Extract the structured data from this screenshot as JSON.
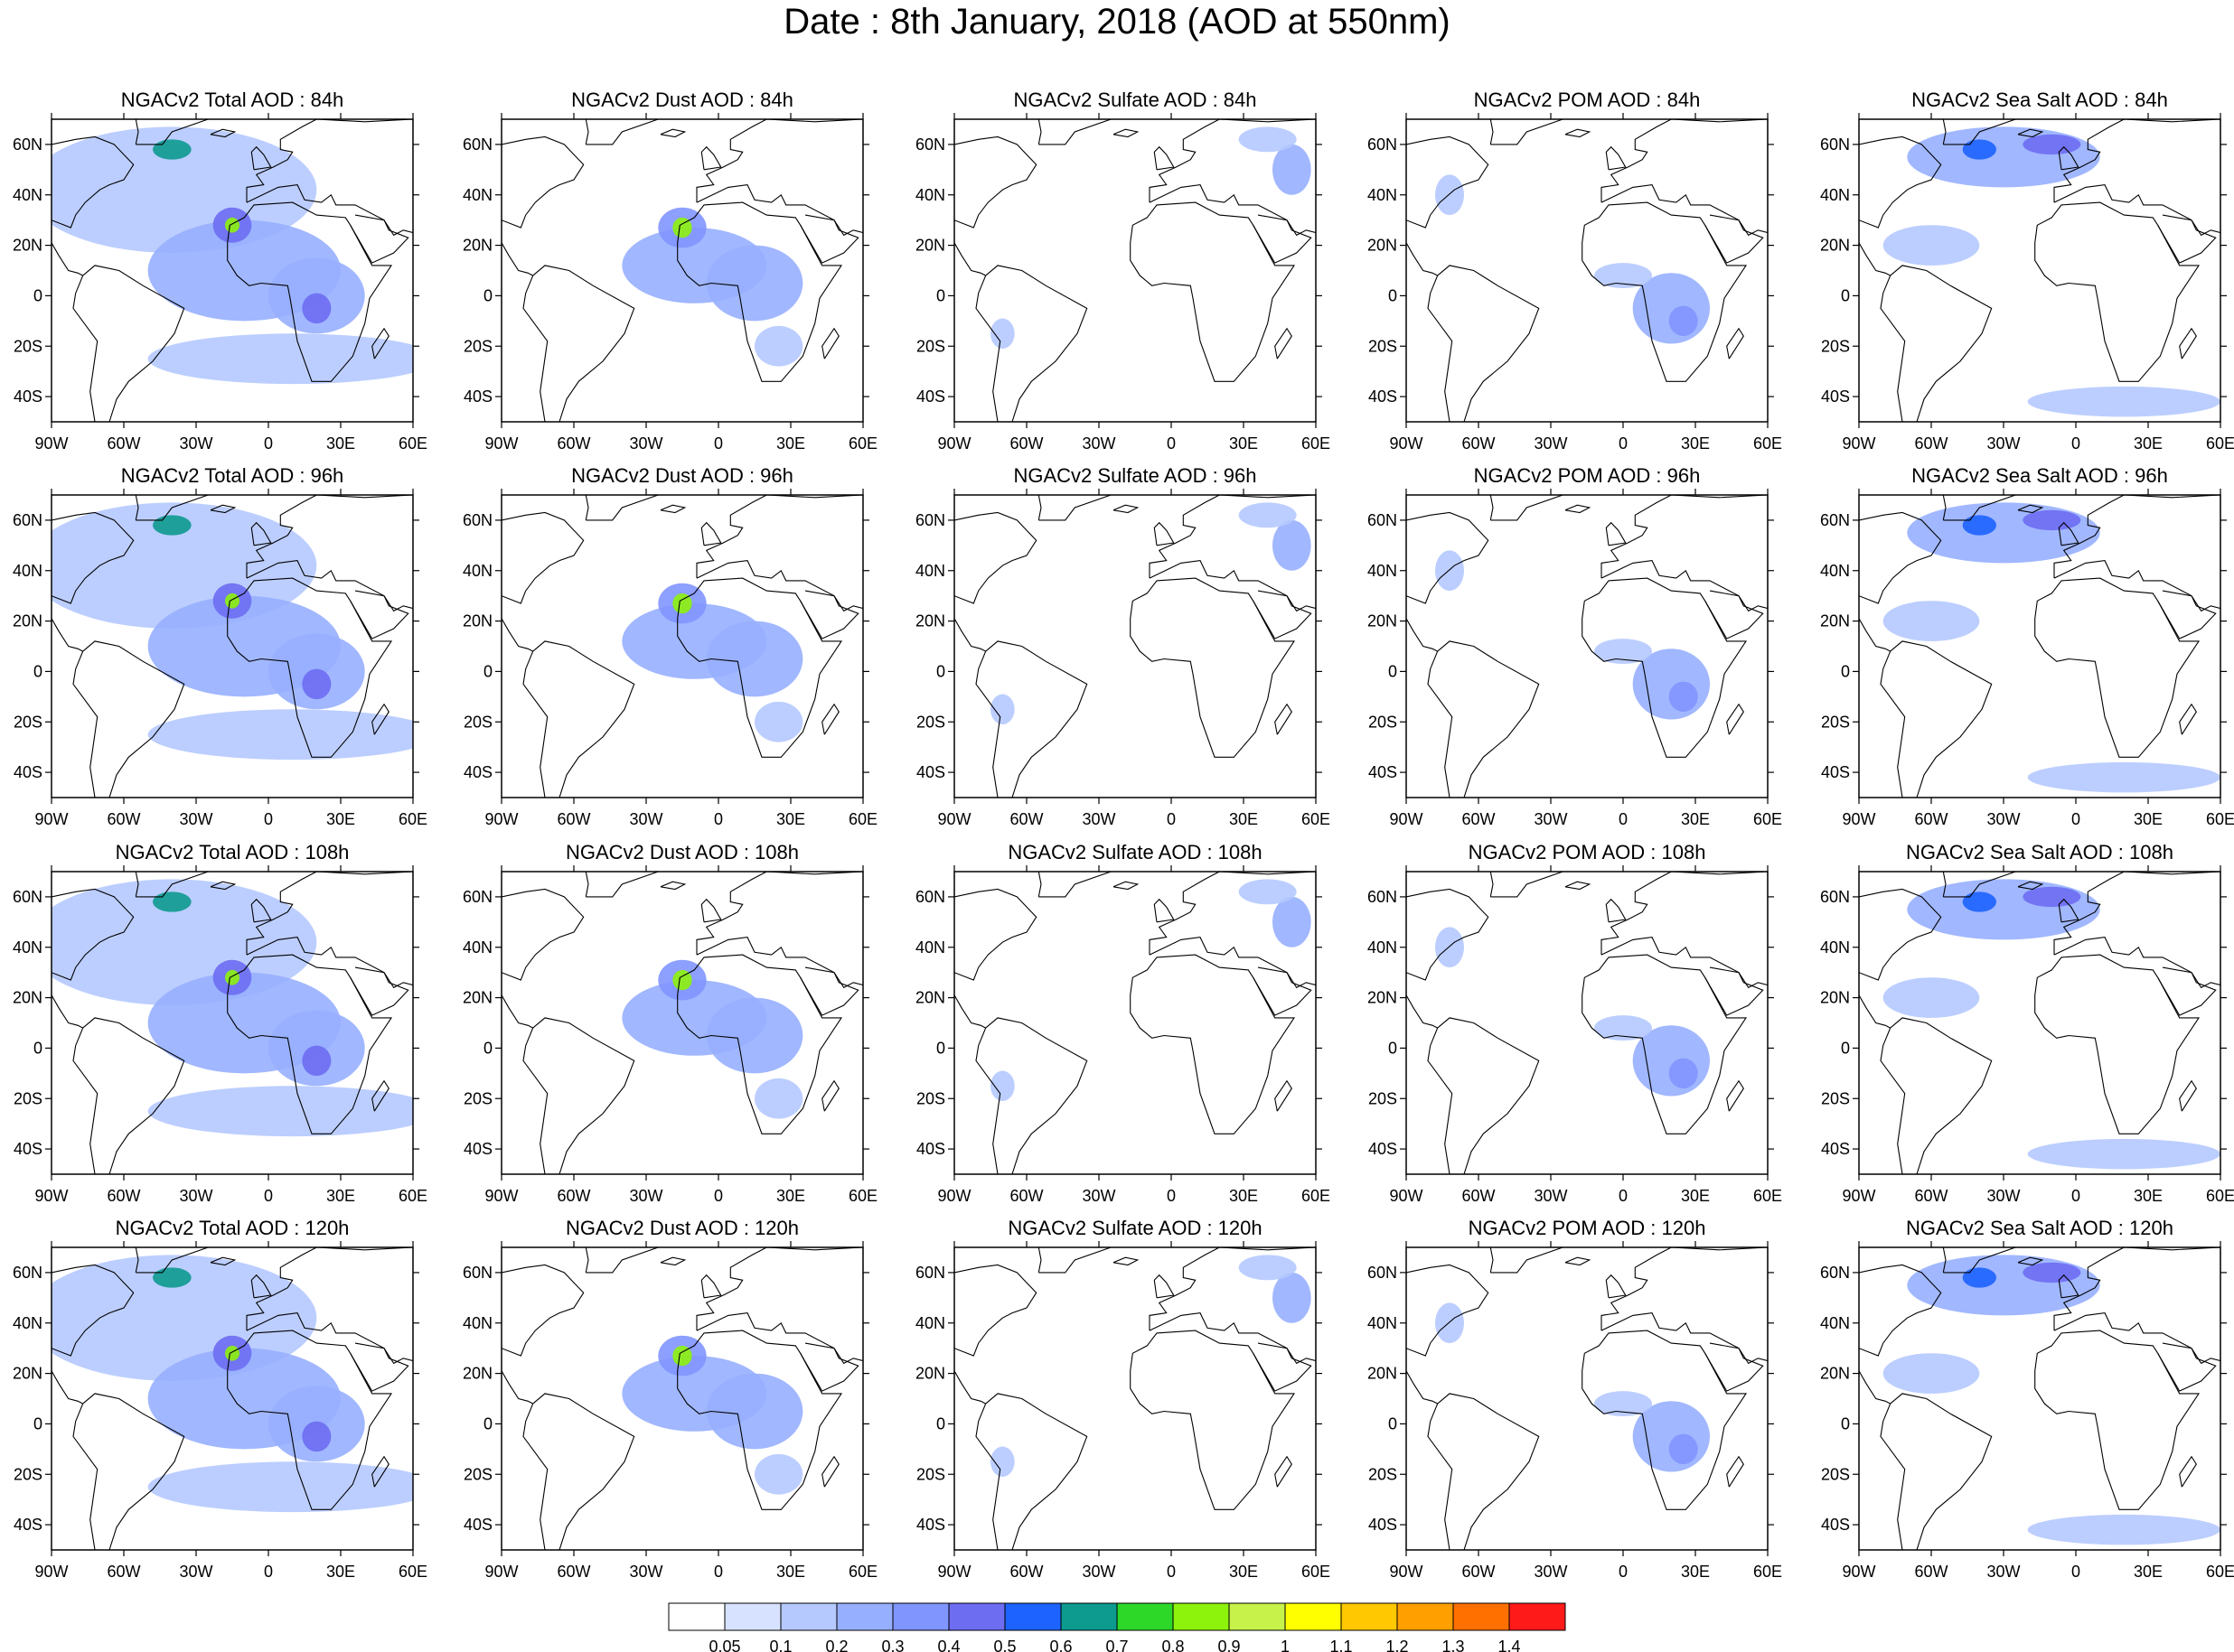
{
  "title": "Date : 8th January, 2018 (AOD at 550nm)",
  "panels": [
    [
      "NGACv2 Total AOD : 84h",
      "NGACv2 Dust AOD : 84h",
      "NGACv2 Sulfate AOD : 84h",
      "NGACv2 POM AOD : 84h",
      "NGACv2 Sea Salt AOD : 84h"
    ],
    [
      "NGACv2 Total AOD : 96h",
      "NGACv2 Dust AOD : 96h",
      "NGACv2 Sulfate AOD : 96h",
      "NGACv2 POM AOD : 96h",
      "NGACv2 Sea Salt AOD : 96h"
    ],
    [
      "NGACv2 Total AOD : 108h",
      "NGACv2 Dust AOD : 108h",
      "NGACv2 Sulfate AOD : 108h",
      "NGACv2 POM AOD : 108h",
      "NGACv2 Sea Salt AOD : 108h"
    ],
    [
      "NGACv2 Total AOD : 120h",
      "NGACv2 Dust AOD : 120h",
      "NGACv2 Sulfate AOD : 120h",
      "NGACv2 POM AOD : 120h",
      "NGACv2 Sea Salt  AOD : 120h"
    ]
  ],
  "lat_labels": [
    "60N",
    "40N",
    "20N",
    "0",
    "20S",
    "40S"
  ],
  "lat_values": [
    60,
    40,
    20,
    0,
    -20,
    -40
  ],
  "lon_labels": [
    "90W",
    "60W",
    "30W",
    "0",
    "30E",
    "60E"
  ],
  "lon_values": [
    -90,
    -60,
    -30,
    0,
    30,
    60
  ],
  "lat_range": [
    -50,
    70
  ],
  "lon_range": [
    -90,
    60
  ],
  "colorbar": {
    "labels": [
      "0.05",
      "0.1",
      "0.2",
      "0.3",
      "0.4",
      "0.5",
      "0.6",
      "0.7",
      "0.8",
      "0.9",
      "1",
      "1.1",
      "1.2",
      "1.3",
      "1.4"
    ],
    "colors": [
      "#ffffff",
      "#d6e2ff",
      "#b5c9ff",
      "#97afff",
      "#8195ff",
      "#6d6df2",
      "#1d63ff",
      "#0d9a8f",
      "#2ed829",
      "#8df20c",
      "#c6f24a",
      "#ffff00",
      "#ffc800",
      "#ffa000",
      "#ff7000",
      "#ff1a1a"
    ]
  }
}
